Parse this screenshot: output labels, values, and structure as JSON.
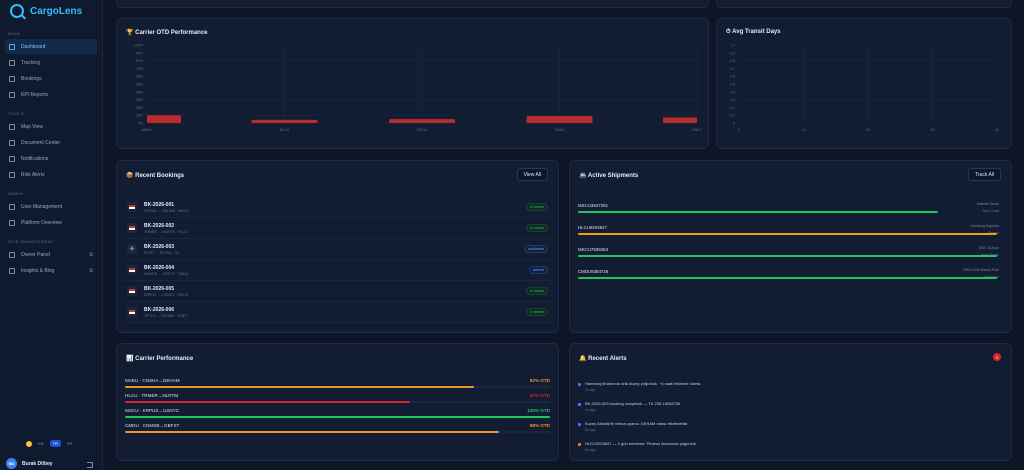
{
  "brand": {
    "name": "CargoLens"
  },
  "sidebar": {
    "sections": [
      {
        "title": "MAIN",
        "items": [
          {
            "label": "Dashboard",
            "icon": "grid-icon",
            "active": true
          },
          {
            "label": "Tracking",
            "icon": "search-icon"
          },
          {
            "label": "Bookings",
            "icon": "box-icon"
          },
          {
            "label": "KPI Reports",
            "icon": "chart-icon"
          }
        ]
      },
      {
        "title": "TOOLS",
        "items": [
          {
            "label": "Map View",
            "icon": "map-icon"
          },
          {
            "label": "Document Center",
            "icon": "document-icon"
          },
          {
            "label": "Notifications",
            "icon": "bell-icon"
          },
          {
            "label": "Risk Alerts",
            "icon": "warning-icon"
          }
        ]
      },
      {
        "title": "ADMIN",
        "items": [
          {
            "label": "User Management",
            "icon": "users-icon"
          },
          {
            "label": "Platform Overview",
            "icon": "globe-icon"
          }
        ]
      },
      {
        "title": "SITE MANAGEMENT",
        "items": [
          {
            "label": "Owner Panel",
            "icon": "hash-icon"
          },
          {
            "label": "Insights & Blog",
            "icon": "book-icon"
          }
        ]
      }
    ],
    "languages": [
      "EN",
      "TR",
      "FR"
    ],
    "selected_language": "TR",
    "user": {
      "initials": "BD",
      "name": "Burak Dilbey"
    }
  },
  "otd_chart": {
    "title": "🏆 Carrier OTD Performance",
    "chart_data": {
      "type": "bar",
      "categories": [
        "MAEU",
        "HLCU",
        "MSCU",
        "CMDU",
        "ONEY"
      ],
      "values": [
        10,
        4,
        5,
        9,
        7
      ],
      "yticks": [
        "100%",
        "90%",
        "80%",
        "70%",
        "60%",
        "50%",
        "40%",
        "30%",
        "20%",
        "10%",
        "0%"
      ],
      "ylim": [
        0,
        100
      ],
      "bar_color": "#b92c2c"
    }
  },
  "transit_chart": {
    "title": "⏱ Avg Transit Days",
    "chart_data": {
      "type": "bar",
      "values": [],
      "yticks": [
        "1.0",
        "0.9",
        "0.8",
        "0.7",
        "0.6",
        "0.5",
        "0.4",
        "0.3",
        "0.2",
        "0.1",
        "0"
      ],
      "xticks": [
        "0",
        "10",
        "20",
        "30",
        "40"
      ],
      "ylim": [
        0,
        1
      ],
      "xlim": [
        0,
        40
      ]
    }
  },
  "bookings": {
    "title": "📦 Recent Bookings",
    "view_all": "View All",
    "rows": [
      {
        "id": "BK-2026-001",
        "route": "CNSHA → DEHAM · MSCU",
        "status": "In transit",
        "type": "transit",
        "icon": "flag"
      },
      {
        "id": "BK-2026-002",
        "route": "TRMER → NLRTM · HLCU",
        "status": "In transit",
        "type": "transit",
        "icon": "flag"
      },
      {
        "id": "BK-2026-003",
        "route": "ETIST → DEFRA · TK",
        "status": "confirmed",
        "type": "conf",
        "icon": "plane"
      },
      {
        "id": "BK-2026-004",
        "route": "CNNGB → GBFXT · CMDU",
        "status": "arrived",
        "type": "conf",
        "icon": "flag"
      },
      {
        "id": "BK-2026-005",
        "route": "KRPUS → USNYC · MSCU",
        "status": "In transit",
        "type": "transit",
        "icon": "flag"
      },
      {
        "id": "BK-2026-006",
        "route": "JPTYO → DEHAM · ONEY",
        "status": "In transit",
        "type": "transit",
        "icon": "flag"
      }
    ]
  },
  "shipments": {
    "title": "🚢 Active Shipments",
    "track_all": "Track All",
    "rows": [
      {
        "id": "MSCU3847281",
        "vessel": "Maersk Seoul",
        "location": "Suez Canal",
        "progress": 0.85,
        "color": "#22c55e"
      },
      {
        "id": "HLCU9203847",
        "vessel": "Hamburg Express",
        "location": "Piraeus",
        "progress": 0.99,
        "color": "#f59e0b"
      },
      {
        "id": "MSCU7839284",
        "vessel": "MSC Gulsun",
        "location": "North Pacific",
        "progress": 0.99,
        "color": "#22c55e"
      },
      {
        "id": "CMDU9384726",
        "vessel": "CMA CGM Marco Polo",
        "location": "Felixstowe",
        "progress": 0.99,
        "color": "#22c55e"
      }
    ]
  },
  "carrier_perf": {
    "title": "📊 Carrier Performance",
    "rows": [
      {
        "name": "MAEU · CNSHA→DEHAM",
        "value": "82% OTD",
        "pct": 0.82,
        "color": "#e09a2c"
      },
      {
        "name": "HLCU · TRMER→NLRTM",
        "value": "67% OTD",
        "pct": 0.67,
        "color": "#dc2626"
      },
      {
        "name": "MSCU · KRPUS→USNYC",
        "value": "100% OTD",
        "pct": 1.0,
        "color": "#22c55e"
      },
      {
        "name": "CMDU · CNNGB→GBFXT",
        "value": "88% OTD",
        "pct": 0.88,
        "color": "#e09a2c"
      }
    ]
  },
  "alerts": {
    "title": "🔔 Recent Alerts",
    "count": "3",
    "rows": [
      {
        "msg": "Hamburg limanında orta düzey yoğunluk. ~6 saat bekleme süresi.",
        "time": "2h ago",
        "color": "#3b82f6"
      },
      {
        "msg": "BK-2026-003 booking onaylandı — TK 235-18284756",
        "time": "4h ago",
        "color": "#3b82f6"
      },
      {
        "msg": "Kuzey Atlantik'te fırtına uyarısı. DEHAM rotası etkilenebilir.",
        "time": "6h ago",
        "color": "#3b82f6"
      },
      {
        "msg": "HLCU9203847 — 2 gün erteleme: Piraeus limanında yoğunluk.",
        "time": "8h ago",
        "color": "#f97316"
      }
    ]
  }
}
